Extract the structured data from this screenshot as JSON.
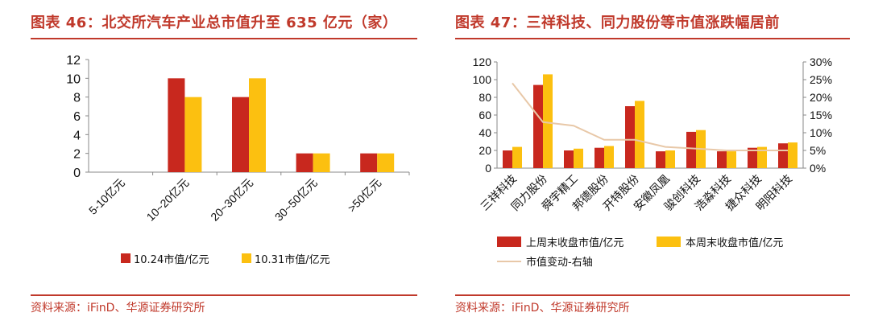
{
  "colors": {
    "accent": "#c0392b",
    "series1": "#c8281e",
    "series2": "#fcc010",
    "line": "#e8c8a8"
  },
  "left": {
    "title": "图表 46：北交所汽车产业总市值升至 635 亿元（家）",
    "source": "资料来源：iFinD、华源证券研究所",
    "chart_data": {
      "type": "bar",
      "categories": [
        "5-10亿元",
        "10~20亿元",
        "20~30亿元",
        "30~50亿元",
        ">50亿元"
      ],
      "series": [
        {
          "name": "10.24市值/亿元",
          "values": [
            0,
            10,
            8,
            2,
            2
          ]
        },
        {
          "name": "10.31市值/亿元",
          "values": [
            0,
            8,
            10,
            2,
            2
          ]
        }
      ],
      "y_ticks": [
        "0",
        "2",
        "4",
        "6",
        "8",
        "10",
        "12"
      ],
      "ylim": [
        0,
        12
      ],
      "legend": "bottom"
    }
  },
  "right": {
    "title": "图表 47：三祥科技、同力股份等市值涨跌幅居前",
    "source": "资料来源：iFinD、华源证券研究所",
    "chart_data": {
      "type": "bar",
      "categories": [
        "三祥科技",
        "同力股份",
        "舜宇精工",
        "邦德股份",
        "开特股份",
        "安徽凤凰",
        "骏创科技",
        "浩淼科技",
        "捷众科技",
        "明阳科技"
      ],
      "series": [
        {
          "name": "上周末收盘市值/亿元",
          "type": "bar",
          "axis": "left",
          "values": [
            20,
            94,
            20,
            23,
            70,
            19,
            41,
            19,
            23,
            28
          ]
        },
        {
          "name": "本周末收盘市值/亿元",
          "type": "bar",
          "axis": "left",
          "values": [
            24,
            106,
            22,
            25,
            76,
            20,
            43,
            19,
            24,
            29
          ]
        },
        {
          "name": "市值变动-右轴",
          "type": "line",
          "axis": "right",
          "values": [
            24,
            13,
            12,
            8,
            8,
            6,
            5.5,
            5,
            5,
            5
          ]
        }
      ],
      "y_ticks": [
        "0",
        "20",
        "40",
        "60",
        "80",
        "100",
        "120"
      ],
      "ylim": [
        0,
        120
      ],
      "y2_ticks": [
        "0%",
        "5%",
        "10%",
        "15%",
        "20%",
        "25%",
        "30%"
      ],
      "y2lim": [
        0,
        30
      ],
      "legend": "bottom"
    }
  }
}
